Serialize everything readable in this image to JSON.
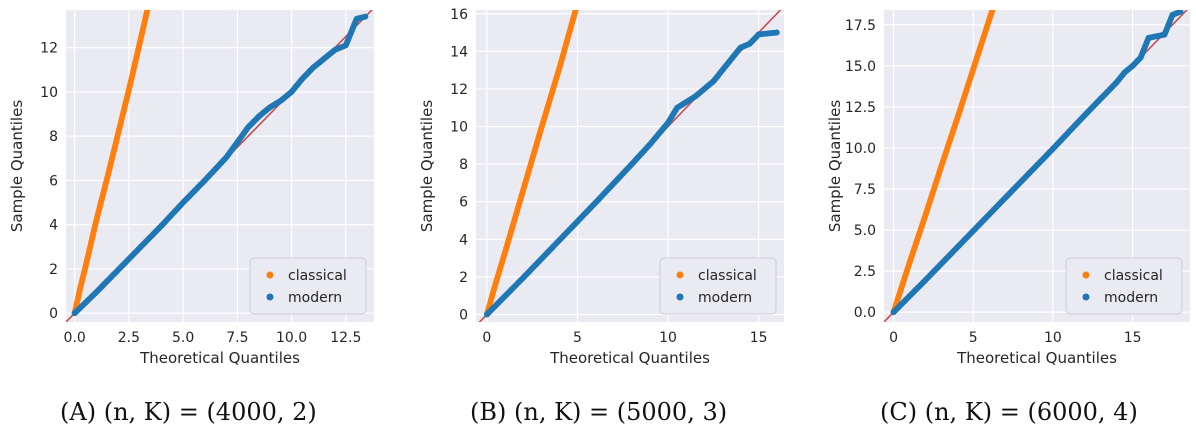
{
  "colors": {
    "classical": "#ff7f0e",
    "modern": "#1f77b4",
    "reference": "#c44e52",
    "background": "#eaeaf2",
    "grid": "#ffffff"
  },
  "chart_data": [
    {
      "type": "scatter",
      "caption_tag": "(A)",
      "caption_text": "(n, K) = (4000, 2)",
      "xlabel": "Theoretical Quantiles",
      "ylabel": "Sample Quantiles",
      "xlim": [
        -0.4,
        13.8
      ],
      "ylim": [
        -0.4,
        13.7
      ],
      "xticks": [
        0,
        2.5,
        5,
        7.5,
        10,
        12.5
      ],
      "xtick_labels": [
        "0.0",
        "2.5",
        "5.0",
        "7.5",
        "10.0",
        "12.5"
      ],
      "yticks": [
        0,
        2,
        4,
        6,
        8,
        10,
        12
      ],
      "ytick_labels": [
        "0",
        "2",
        "4",
        "6",
        "8",
        "10",
        "12"
      ],
      "grid": true,
      "legend": "bottom-right",
      "reference_line": {
        "slope": 1,
        "intercept": 0
      },
      "series": [
        {
          "name": "classical",
          "color_key": "classical",
          "points": [
            [
              0,
              0
            ],
            [
              0.25,
              1.1
            ],
            [
              0.5,
              2.1
            ],
            [
              1,
              4.2
            ],
            [
              1.5,
              6.1
            ],
            [
              2,
              8.1
            ],
            [
              2.5,
              10.1
            ],
            [
              3,
              12.2
            ],
            [
              3.35,
              13.7
            ]
          ]
        },
        {
          "name": "modern",
          "color_key": "modern",
          "points": [
            [
              0,
              0
            ],
            [
              1,
              0.95
            ],
            [
              2,
              1.95
            ],
            [
              3,
              2.95
            ],
            [
              4,
              3.95
            ],
            [
              5,
              5
            ],
            [
              6,
              6
            ],
            [
              7,
              7.05
            ],
            [
              8,
              8.4
            ],
            [
              8.5,
              8.9
            ],
            [
              9,
              9.3
            ],
            [
              9.5,
              9.6
            ],
            [
              10,
              10
            ],
            [
              10.5,
              10.6
            ],
            [
              11,
              11.1
            ],
            [
              11.5,
              11.5
            ],
            [
              12,
              11.9
            ],
            [
              12.5,
              12.1
            ],
            [
              13,
              13.3
            ],
            [
              13.4,
              13.4
            ]
          ]
        }
      ]
    },
    {
      "type": "scatter",
      "caption_tag": "(B)",
      "caption_text": "(n, K) = (5000, 3)",
      "xlabel": "Theoretical Quantiles",
      "ylabel": "Sample Quantiles",
      "xlim": [
        -0.6,
        16.4
      ],
      "ylim": [
        -0.4,
        16.2
      ],
      "xticks": [
        0,
        5,
        10,
        15
      ],
      "xtick_labels": [
        "0",
        "5",
        "10",
        "15"
      ],
      "yticks": [
        0,
        2,
        4,
        6,
        8,
        10,
        12,
        14,
        16
      ],
      "ytick_labels": [
        "0",
        "2",
        "4",
        "6",
        "8",
        "10",
        "12",
        "14",
        "16"
      ],
      "grid": true,
      "legend": "bottom-right",
      "reference_line": {
        "slope": 1,
        "intercept": 0
      },
      "series": [
        {
          "name": "classical",
          "color_key": "classical",
          "points": [
            [
              0,
              0
            ],
            [
              0.5,
              1.7
            ],
            [
              1,
              3.3
            ],
            [
              2,
              6.6
            ],
            [
              3,
              9.9
            ],
            [
              4,
              13.1
            ],
            [
              4.9,
              16.2
            ]
          ]
        },
        {
          "name": "modern",
          "color_key": "modern",
          "points": [
            [
              0,
              0
            ],
            [
              2,
              1.95
            ],
            [
              4,
              3.95
            ],
            [
              6,
              5.95
            ],
            [
              8,
              8
            ],
            [
              9,
              9.05
            ],
            [
              10,
              10.2
            ],
            [
              10.5,
              11
            ],
            [
              11,
              11.3
            ],
            [
              11.5,
              11.6
            ],
            [
              12,
              12
            ],
            [
              12.5,
              12.4
            ],
            [
              13,
              13
            ],
            [
              13.5,
              13.6
            ],
            [
              14,
              14.2
            ],
            [
              14.5,
              14.4
            ],
            [
              15,
              14.9
            ],
            [
              16,
              15
            ]
          ]
        }
      ]
    },
    {
      "type": "scatter",
      "caption_tag": "(C)",
      "caption_text": "(n, K) = (6000, 4)",
      "xlabel": "Theoretical Quantiles",
      "ylabel": "Sample Quantiles",
      "xlim": [
        -0.6,
        18.6
      ],
      "ylim": [
        -0.6,
        18.4
      ],
      "xticks": [
        0,
        5,
        10,
        15
      ],
      "xtick_labels": [
        "0",
        "5",
        "10",
        "15"
      ],
      "yticks": [
        0,
        2.5,
        5,
        7.5,
        10,
        12.5,
        15,
        17.5
      ],
      "ytick_labels": [
        "0.0",
        "2.5",
        "5.0",
        "7.5",
        "10.0",
        "12.5",
        "15.0",
        "17.5"
      ],
      "grid": true,
      "legend": "bottom-right",
      "reference_line": {
        "slope": 1,
        "intercept": 0
      },
      "series": [
        {
          "name": "classical",
          "color_key": "classical",
          "points": [
            [
              0,
              0
            ],
            [
              0.5,
              1.5
            ],
            [
              1,
              3
            ],
            [
              2,
              5.9
            ],
            [
              3,
              8.9
            ],
            [
              4,
              11.8
            ],
            [
              5,
              14.8
            ],
            [
              6.2,
              18.4
            ]
          ]
        },
        {
          "name": "modern",
          "color_key": "modern",
          "points": [
            [
              0,
              0
            ],
            [
              2,
              1.95
            ],
            [
              4,
              3.95
            ],
            [
              6,
              5.95
            ],
            [
              8,
              7.95
            ],
            [
              10,
              9.95
            ],
            [
              12,
              12
            ],
            [
              13,
              13
            ],
            [
              14,
              14
            ],
            [
              14.5,
              14.6
            ],
            [
              15,
              15
            ],
            [
              15.5,
              15.5
            ],
            [
              16,
              16.7
            ],
            [
              17,
              16.9
            ],
            [
              17.5,
              18.1
            ],
            [
              18,
              18.3
            ]
          ]
        }
      ]
    }
  ]
}
